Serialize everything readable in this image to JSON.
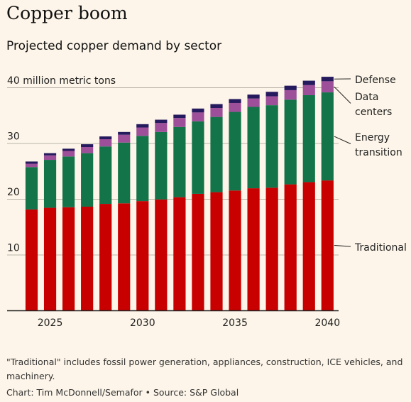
{
  "title": "Copper boom",
  "subtitle": "Projected copper demand by sector",
  "footnote": "\"Traditional\" includes fossil power generation, appliances, construction, ICE vehicles, and machinery.",
  "credit": "Chart: Tim McDonnell/Semafor • Source: S&P Global",
  "chart_data": {
    "type": "bar",
    "stacked": true,
    "ylabel": "40 million metric tons",
    "ylim": [
      0,
      42
    ],
    "yticks": [
      {
        "value": 10,
        "label": "10"
      },
      {
        "value": 20,
        "label": "20"
      },
      {
        "value": 30,
        "label": "30"
      },
      {
        "value": 40,
        "label": "40 million metric tons"
      }
    ],
    "grid": true,
    "categories": [
      2024,
      2025,
      2026,
      2027,
      2028,
      2029,
      2030,
      2031,
      2032,
      2033,
      2034,
      2035,
      2036,
      2037,
      2038,
      2039,
      2040
    ],
    "xticks": [
      {
        "value": 2025,
        "label": "2025"
      },
      {
        "value": 2030,
        "label": "2030"
      },
      {
        "value": 2035,
        "label": "2035"
      },
      {
        "value": 2040,
        "label": "2040"
      }
    ],
    "series": [
      {
        "name": "Traditional",
        "color": "#c80000",
        "values": [
          18.1,
          18.4,
          18.5,
          18.6,
          19.1,
          19.2,
          19.6,
          19.9,
          20.3,
          20.9,
          21.2,
          21.5,
          21.9,
          22.0,
          22.6,
          23.0,
          23.3
        ]
      },
      {
        "name": "Energy transition",
        "color": "#13744a",
        "values": [
          7.6,
          8.6,
          9.1,
          9.6,
          10.3,
          10.9,
          11.7,
          12.1,
          12.6,
          13.0,
          13.5,
          14.1,
          14.6,
          14.8,
          15.2,
          15.6,
          15.8
        ]
      },
      {
        "name": "Data centers",
        "color": "#9e4f99",
        "values": [
          0.6,
          0.8,
          1.0,
          1.1,
          1.3,
          1.4,
          1.5,
          1.6,
          1.6,
          1.6,
          1.6,
          1.6,
          1.5,
          1.6,
          1.7,
          1.8,
          2.0
        ]
      },
      {
        "name": "Defense",
        "color": "#261a5e",
        "values": [
          0.4,
          0.4,
          0.4,
          0.5,
          0.5,
          0.5,
          0.6,
          0.6,
          0.6,
          0.7,
          0.7,
          0.7,
          0.7,
          0.8,
          0.8,
          0.8,
          0.8
        ]
      }
    ],
    "legend": [
      {
        "series": "Defense",
        "lines": [
          "Defense"
        ]
      },
      {
        "series": "Data centers",
        "lines": [
          "Data",
          "centers"
        ]
      },
      {
        "series": "Energy transition",
        "lines": [
          "Energy",
          "transition"
        ]
      },
      {
        "series": "Traditional",
        "lines": [
          "Traditional"
        ]
      }
    ],
    "legend_position": "right"
  }
}
